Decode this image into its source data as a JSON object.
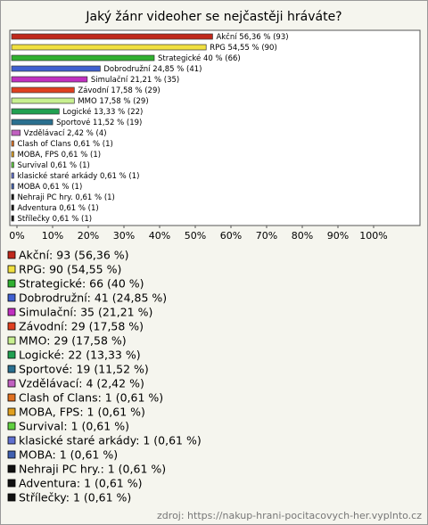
{
  "chart_data": {
    "type": "bar",
    "orientation": "horizontal",
    "title": "Jaký žánr videoher se nejčastěji hráváte?",
    "categories": [
      "Akční",
      "RPG",
      "Strategické",
      "Dobrodružní",
      "Simulační",
      "Závodní",
      "MMO",
      "Logické",
      "Sportové",
      "Vzdělávací",
      "Clash of Clans",
      "MOBA, FPS",
      "Survival",
      "klasické staré arkády",
      "MOBA",
      "Nehraji PC hry.",
      "Adventura",
      "Střílečky"
    ],
    "values": [
      56.36,
      54.55,
      40,
      24.85,
      21.21,
      17.58,
      17.58,
      13.33,
      11.52,
      2.42,
      0.61,
      0.61,
      0.61,
      0.61,
      0.61,
      0.61,
      0.61,
      0.61
    ],
    "value_labels": [
      "Akční 56,36 % (93)",
      "RPG 54,55 % (90)",
      "Strategické 40 % (66)",
      "Dobrodružní 24,85 % (41)",
      "Simulační 21,21 % (35)",
      "Závodní 17,58 % (29)",
      "MMO 17,58 % (29)",
      "Logické 13,33 % (22)",
      "Sportové 11,52 % (19)",
      "Vzdělávací 2,42 % (4)",
      "Clash of Clans 0,61 % (1)",
      "MOBA, FPS 0,61 % (1)",
      "Survival 0,61 % (1)",
      "klasické staré arkády 0,61 % (1)",
      "MOBA 0,61 % (1)",
      "Nehraji PC hry. 0,61 % (1)",
      "Adventura 0,61 % (1)",
      "Střílečky 0,61 % (1)"
    ],
    "legend_labels": [
      "Akční: 93 (56,36 %)",
      "RPG: 90 (54,55 %)",
      "Strategické: 66 (40 %)",
      "Dobrodružní: 41 (24,85 %)",
      "Simulační: 35 (21,21 %)",
      "Závodní: 29 (17,58 %)",
      "MMO: 29 (17,58 %)",
      "Logické: 22 (13,33 %)",
      "Sportové: 19 (11,52 %)",
      "Vzdělávací: 4 (2,42 %)",
      "Clash of Clans: 1 (0,61 %)",
      "MOBA, FPS: 1 (0,61 %)",
      "Survival: 1 (0,61 %)",
      "klasické staré arkády: 1 (0,61 %)",
      "MOBA: 1 (0,61 %)",
      "Nehraji PC hry.: 1 (0,61 %)",
      "Adventura: 1 (0,61 %)",
      "Střílečky: 1 (0,61 %)"
    ],
    "colors": [
      "#c0281c",
      "#f0e040",
      "#30b030",
      "#4060d0",
      "#c030c0",
      "#e04020",
      "#c8f090",
      "#20a050",
      "#2a7090",
      "#c060c0",
      "#e07020",
      "#e0a020",
      "#60d040",
      "#6070d0",
      "#4060b0",
      "#111111",
      "#111111",
      "#111111"
    ],
    "xlim": [
      0,
      100
    ],
    "xticks": [
      {
        "value": 0,
        "label": "0%"
      },
      {
        "value": 10,
        "label": "10%"
      },
      {
        "value": 20,
        "label": "20%"
      },
      {
        "value": 30,
        "label": "30%"
      },
      {
        "value": 40,
        "label": "40%"
      },
      {
        "value": 50,
        "label": "50%"
      },
      {
        "value": 60,
        "label": "60%"
      },
      {
        "value": 70,
        "label": "70%"
      },
      {
        "value": 80,
        "label": "80%"
      },
      {
        "value": 90,
        "label": "90%"
      },
      {
        "value": 100,
        "label": "100%"
      }
    ],
    "source": "zdroj: https://nakup-hrani-pocitacovych-her.vyplnto.cz"
  }
}
